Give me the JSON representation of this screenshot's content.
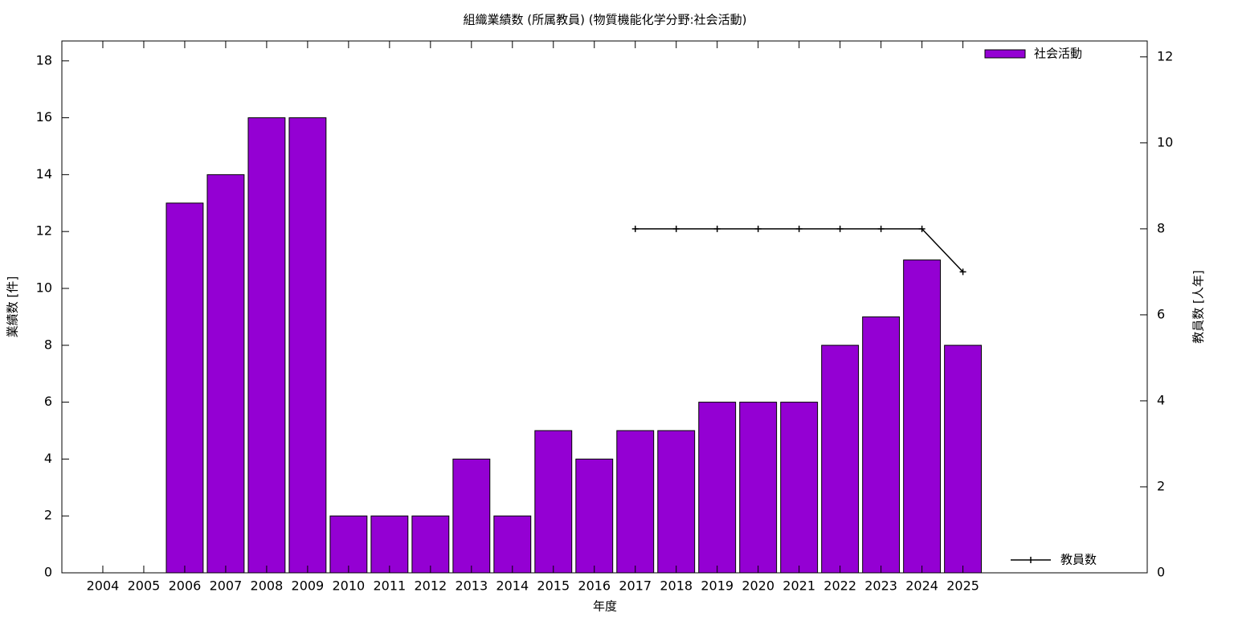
{
  "chart_data": {
    "type": "bar",
    "title": "組織業績数 (所属教員) (物質機能化学分野:社会活動)",
    "x_label": "年度",
    "y_label": "業績数 [件]",
    "y2_label": "教員数 [人年]",
    "x": [
      2004,
      2005,
      2006,
      2007,
      2008,
      2009,
      2010,
      2011,
      2012,
      2013,
      2014,
      2015,
      2016,
      2017,
      2018,
      2019,
      2020,
      2021,
      2022,
      2023,
      2024,
      2025
    ],
    "xlim": [
      2003,
      2029.5
    ],
    "xticks": [
      2004,
      2005,
      2006,
      2007,
      2008,
      2009,
      2010,
      2011,
      2012,
      2013,
      2014,
      2015,
      2016,
      2017,
      2018,
      2019,
      2020,
      2021,
      2022,
      2023,
      2024,
      2025
    ],
    "ylim": [
      0,
      18.7
    ],
    "yticks": [
      0,
      2,
      4,
      6,
      8,
      10,
      12,
      14,
      16,
      18
    ],
    "y2lim": [
      0,
      12.37
    ],
    "y2ticks": [
      0,
      2,
      4,
      6,
      8,
      10,
      12
    ],
    "series": [
      {
        "name": "社会活動",
        "color": "#9400d3",
        "values": [
          0,
          0,
          13,
          14,
          16,
          16,
          2,
          2,
          2,
          4,
          2,
          5,
          4,
          5,
          5,
          6,
          6,
          6,
          8,
          9,
          11,
          8
        ]
      },
      {
        "name": "教員数",
        "color": "#000000",
        "axis": "y2",
        "values": [
          null,
          null,
          null,
          null,
          null,
          null,
          null,
          null,
          null,
          null,
          null,
          null,
          null,
          8,
          8,
          8,
          8,
          8,
          8,
          8,
          8,
          7
        ]
      }
    ]
  }
}
